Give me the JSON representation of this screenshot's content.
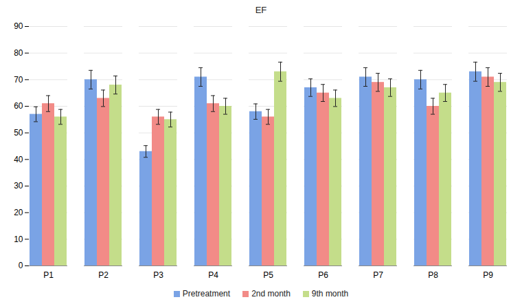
{
  "chart_data": {
    "type": "bar",
    "title": "EF",
    "categories": [
      "P1",
      "P2",
      "P3",
      "P4",
      "P5",
      "P6",
      "P7",
      "P8",
      "P9"
    ],
    "series": [
      {
        "name": "Pretreatment",
        "color": "#7aa3e5",
        "values": [
          57,
          70,
          43,
          71,
          58,
          67,
          71,
          70,
          73
        ],
        "errors": [
          2.8,
          3.5,
          2.2,
          3.5,
          2.9,
          3.3,
          3.5,
          3.5,
          3.6
        ]
      },
      {
        "name": "2nd month",
        "color": "#f28b87",
        "values": [
          61,
          63,
          56,
          61,
          56,
          65,
          69,
          60,
          71
        ],
        "errors": [
          3,
          3.1,
          2.8,
          3,
          2.8,
          3.2,
          3.4,
          3,
          3.5
        ]
      },
      {
        "name": "9th month",
        "color": "#c4dd8a",
        "values": [
          56,
          68,
          55,
          60,
          73,
          63,
          67,
          65,
          69
        ],
        "errors": [
          2.8,
          3.4,
          2.8,
          3,
          3.6,
          3.1,
          3.3,
          3.2,
          3.4
        ]
      }
    ],
    "ylim": [
      0,
      90
    ],
    "yticks": [
      0,
      10,
      20,
      30,
      40,
      50,
      60,
      70,
      80,
      90
    ],
    "grid": true,
    "legend": "bottom"
  }
}
